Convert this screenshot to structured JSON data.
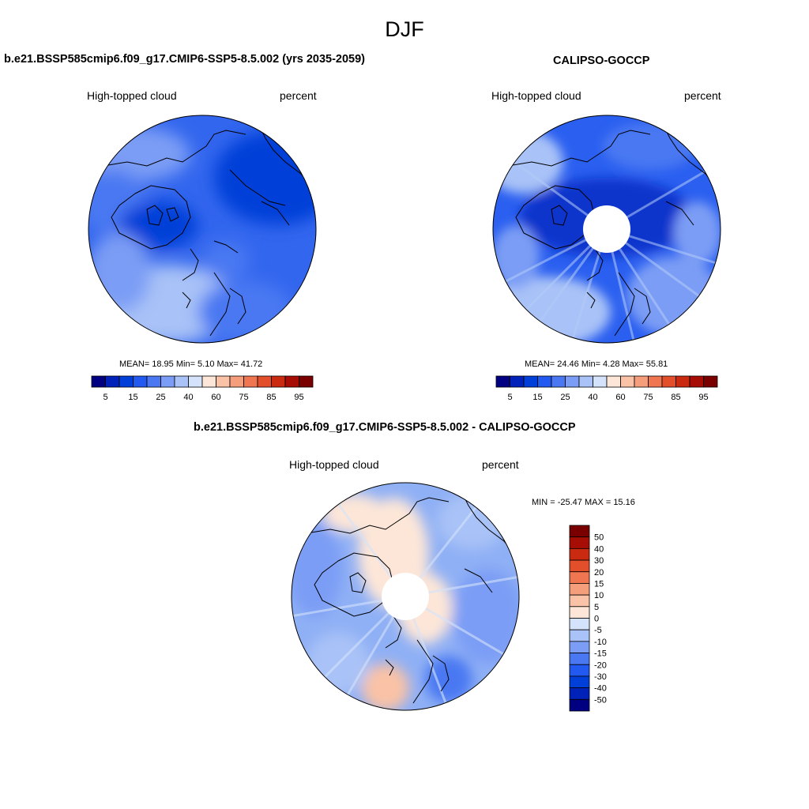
{
  "season": "DJF",
  "variable": "High-topped cloud",
  "units": "percent",
  "panels": [
    {
      "title": "b.e21.BSSP585cmip6.f09_g17.CMIP6-SSP5-8.5.002 (yrs 2035-2059)",
      "stats": "MEAN=  18.95  Min=   5.10  Max=  41.72",
      "has_pole_hole": false
    },
    {
      "title": "CALIPSO-GOCCP",
      "stats": "MEAN=  24.46  Min=   4.28  Max=  55.81",
      "has_pole_hole": true
    },
    {
      "title": "b.e21.BSSP585cmip6.f09_g17.CMIP6-SSP5-8.5.002 - CALIPSO-GOCCP",
      "stats": "MIN = -25.47 MAX =  15.16",
      "has_pole_hole": true
    }
  ],
  "colorbar_abs": {
    "levels": [
      "5",
      "10",
      "15",
      "20",
      "25",
      "30",
      "40",
      "50",
      "60",
      "70",
      "75",
      "80",
      "85",
      "90",
      "95"
    ],
    "labels": [
      "5",
      "15",
      "25",
      "40",
      "60",
      "75",
      "85",
      "95"
    ],
    "colors": [
      "#000080",
      "#0022b8",
      "#0040d8",
      "#2259f0",
      "#4978f2",
      "#7b9df5",
      "#a9c2f7",
      "#d4e3fb",
      "#fde6d8",
      "#fac2a6",
      "#f59e7c",
      "#f07652",
      "#e34e2b",
      "#c92a10",
      "#a60e05",
      "#7a0000"
    ]
  },
  "colorbar_diff": {
    "labels": [
      "50",
      "40",
      "30",
      "20",
      "15",
      "10",
      "5",
      "0",
      "-5",
      "-10",
      "-15",
      "-20",
      "-30",
      "-40",
      "-50"
    ],
    "colors": [
      "#7a0000",
      "#a60e05",
      "#c92a10",
      "#e34e2b",
      "#f07652",
      "#f59e7c",
      "#fac2a6",
      "#fde6d8",
      "#d4e3fb",
      "#a9c2f7",
      "#7b9df5",
      "#4978f2",
      "#2259f0",
      "#0040d8",
      "#0022b8",
      "#000080"
    ]
  },
  "map_colors": {
    "model_base": "#3266ee",
    "obs_base": "#2a5ff0",
    "diff_base": "#8fb0f5",
    "coast": "#000000"
  }
}
